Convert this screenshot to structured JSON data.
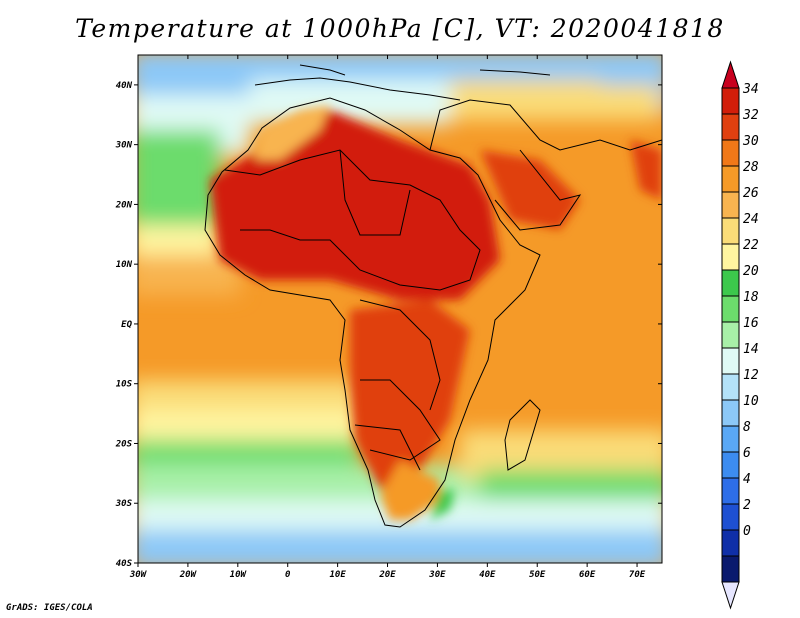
{
  "title": "Temperature at 1000hPa [C], VT: 2020041818",
  "footer": "GrADS: IGES/COLA",
  "map": {
    "region": "Africa",
    "variable": "Temperature at 1000hPa",
    "units": "C",
    "lon_range": [
      -30,
      75
    ],
    "lat_range": [
      -40,
      45
    ],
    "lon_ticks": [
      "30W",
      "20W",
      "10W",
      "0",
      "10E",
      "20E",
      "30E",
      "40E",
      "50E",
      "60E",
      "70E"
    ],
    "lat_ticks": [
      "40N",
      "30N",
      "20N",
      "10N",
      "EQ",
      "10S",
      "20S",
      "30S",
      "40S"
    ]
  },
  "colorbar": {
    "levels": [
      "0",
      "2",
      "4",
      "6",
      "8",
      "10",
      "12",
      "14",
      "16",
      "18",
      "20",
      "22",
      "24",
      "26",
      "28",
      "30",
      "32",
      "34"
    ],
    "colors": [
      "#e6e6ff",
      "#0a1a6e",
      "#0f2fa8",
      "#1e50d2",
      "#2e6ee8",
      "#3c8cf0",
      "#5aa8f5",
      "#8cc8f7",
      "#b4e2f8",
      "#e0faf5",
      "#a8f0a8",
      "#6cdc6c",
      "#3cc84c",
      "#fff5a0",
      "#fadc78",
      "#f8b450",
      "#f59a28",
      "#f07818",
      "#e04010",
      "#d21e0a",
      "#c8001e"
    ]
  }
}
